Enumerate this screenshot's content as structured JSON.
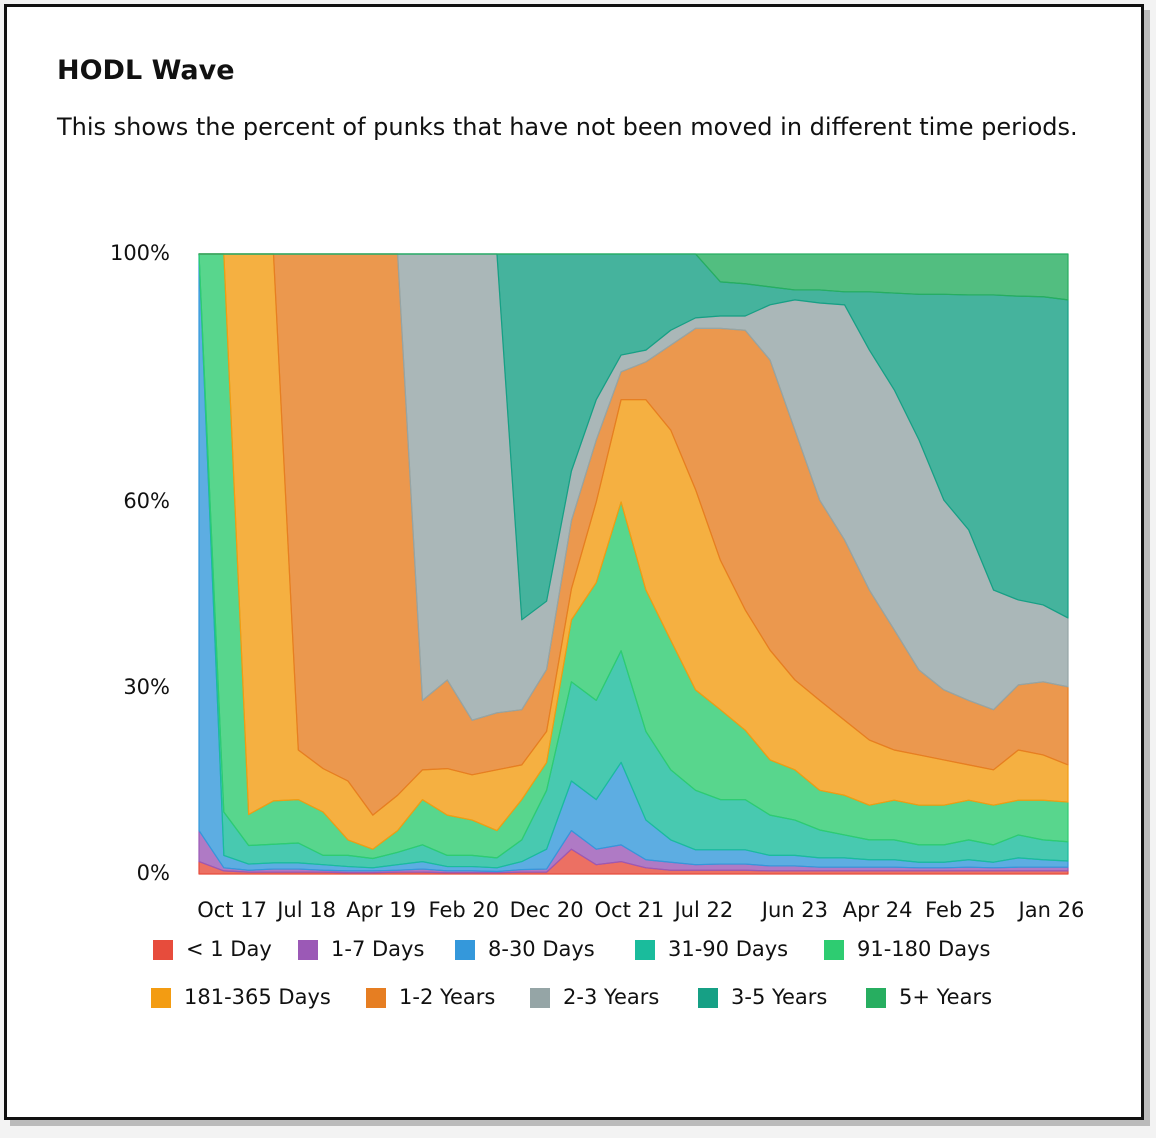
{
  "chart_data": {
    "type": "stacked_area",
    "title": "HODL Wave",
    "subtitle": "This shows the percent of punks that have not been moved in different time periods.",
    "x": [
      "2017-06",
      "2017-09",
      "2017-12",
      "2018-03",
      "2018-06",
      "2018-09",
      "2018-12",
      "2019-03",
      "2019-06",
      "2019-09",
      "2019-12",
      "2020-03",
      "2020-06",
      "2020-09",
      "2020-12",
      "2021-03",
      "2021-06",
      "2021-09",
      "2021-12",
      "2022-03",
      "2022-06",
      "2022-09",
      "2022-12",
      "2023-03",
      "2023-06",
      "2023-09",
      "2023-12",
      "2024-03",
      "2024-06",
      "2024-09",
      "2024-12",
      "2025-03",
      "2025-06",
      "2025-09",
      "2025-12",
      "2026-03"
    ],
    "xlim": [
      "2017-06",
      "2026-03"
    ],
    "xticks": [
      {
        "value": "2017-10",
        "label": "Oct 17"
      },
      {
        "value": "2018-07",
        "label": "Jul 18"
      },
      {
        "value": "2019-04",
        "label": "Apr 19"
      },
      {
        "value": "2020-02",
        "label": "Feb 20"
      },
      {
        "value": "2020-12",
        "label": "Dec 20"
      },
      {
        "value": "2021-10",
        "label": "Oct 21"
      },
      {
        "value": "2022-07",
        "label": "Jul 22"
      },
      {
        "value": "2023-06",
        "label": "Jun 23"
      },
      {
        "value": "2024-04",
        "label": "Apr 24"
      },
      {
        "value": "2025-02",
        "label": "Feb 25"
      },
      {
        "value": "2026-01",
        "label": "Jan 26"
      }
    ],
    "ylim": [
      0,
      100
    ],
    "yticks": [
      {
        "value": 0,
        "label": "0%"
      },
      {
        "value": 30,
        "label": "30%"
      },
      {
        "value": 60,
        "label": "60%"
      },
      {
        "value": 100,
        "label": "100%"
      }
    ],
    "grid": false,
    "series": [
      {
        "name": "< 1 Day",
        "color": "#e74c3c",
        "values": [
          2,
          0.5,
          0.3,
          0.3,
          0.3,
          0.3,
          0.2,
          0.2,
          0.3,
          0.3,
          0.2,
          0.2,
          0.2,
          0.3,
          0.3,
          4,
          1.5,
          2,
          1,
          0.6,
          0.6,
          0.6,
          0.6,
          0.5,
          0.5,
          0.5,
          0.5,
          0.5,
          0.5,
          0.5,
          0.5,
          0.5,
          0.5,
          0.5,
          0.5,
          0.5
        ]
      },
      {
        "name": "1-7 Days",
        "color": "#9b59b6",
        "values": [
          5,
          0.5,
          0.3,
          0.5,
          0.5,
          0.3,
          0.3,
          0.3,
          0.3,
          0.5,
          0.3,
          0.3,
          0.2,
          0.4,
          0.5,
          3,
          2.5,
          2.7,
          1.3,
          1.3,
          0.9,
          1,
          1,
          0.8,
          0.8,
          0.6,
          0.6,
          0.6,
          0.6,
          0.5,
          0.5,
          0.6,
          0.5,
          0.6,
          0.6,
          0.6
        ]
      },
      {
        "name": "8-30 Days",
        "color": "#3498db",
        "values": [
          93,
          2,
          1,
          1,
          1,
          0.9,
          0.7,
          0.5,
          0.9,
          1.2,
          0.7,
          0.7,
          0.6,
          1.3,
          3.2,
          8,
          8,
          13.3,
          6.4,
          3.6,
          2.4,
          2.3,
          2.3,
          1.7,
          1.7,
          1.5,
          1.5,
          1.2,
          1.2,
          0.9,
          0.9,
          1.2,
          0.9,
          1.5,
          1.2,
          1
        ]
      },
      {
        "name": "31-90 Days",
        "color": "#1abc9c",
        "values": [
          0,
          7,
          3,
          3,
          3.2,
          1.5,
          1.8,
          1.5,
          2,
          2.7,
          1.8,
          1.8,
          1.6,
          3.5,
          9.5,
          16,
          16,
          18,
          14.3,
          11.3,
          9.6,
          8.1,
          8.1,
          6.5,
          5.7,
          4.5,
          3.7,
          3.2,
          3.2,
          2.8,
          2.8,
          3.2,
          2.8,
          3.7,
          3.2,
          3.1
        ]
      },
      {
        "name": "91-180 Days",
        "color": "#2ecc71",
        "values": [
          0,
          90,
          5,
          7,
          7,
          7,
          2.5,
          1.5,
          3.5,
          7.3,
          6.5,
          5.7,
          4.4,
          6.5,
          4.5,
          10,
          19,
          24,
          22.8,
          20.9,
          16.2,
          14.5,
          11.2,
          8.9,
          8.1,
          6.4,
          6.4,
          5.6,
          6.4,
          6.4,
          6.4,
          6.4,
          6.4,
          5.6,
          6.4,
          6.4
        ]
      },
      {
        "name": "181-365 Days",
        "color": "#f39c12",
        "values": [
          0,
          0,
          90.4,
          88.2,
          8,
          7,
          9.5,
          5.5,
          5.7,
          4.8,
          7.5,
          7.3,
          9.8,
          5.6,
          5,
          5,
          13,
          16.5,
          30.7,
          33.9,
          32.3,
          24.1,
          19.4,
          17.7,
          14.5,
          14.5,
          12.1,
          10.5,
          8.1,
          8.1,
          7.3,
          5.7,
          5.7,
          8.1,
          7.3,
          6
        ]
      },
      {
        "name": "1-2 Years",
        "color": "#e67e22",
        "values": [
          0,
          0,
          0,
          0,
          80,
          83,
          85,
          90.5,
          87.3,
          11.2,
          14.3,
          8.8,
          9.2,
          8.9,
          10,
          11,
          10,
          4.5,
          6.1,
          13.7,
          26,
          37.4,
          45.1,
          46.8,
          40.3,
          32.3,
          29.1,
          24.2,
          19.4,
          13.7,
          11.3,
          10.4,
          9.7,
          10.5,
          11.8,
          12.6
        ]
      },
      {
        "name": "2-3 Years",
        "color": "#95a5a6",
        "values": [
          0,
          0,
          0,
          0,
          0,
          0,
          0,
          0,
          0,
          72,
          68.7,
          75.2,
          74,
          14.5,
          11,
          8,
          6.5,
          2.7,
          1.9,
          2.4,
          1.7,
          2,
          2.3,
          8.9,
          21,
          31.8,
          37.9,
          38.7,
          38.7,
          37.1,
          30.6,
          27.5,
          19.3,
          13.7,
          12.4,
          11.1
        ]
      },
      {
        "name": "3-5 Years",
        "color": "#16a085",
        "values": [
          0,
          0,
          0,
          0,
          0,
          0,
          0,
          0,
          0,
          0,
          0,
          0,
          0,
          59,
          56,
          35,
          23.5,
          16.3,
          15.5,
          12.3,
          10.3,
          5.5,
          5.2,
          2.9,
          1.6,
          2.1,
          2.1,
          9.4,
          15.6,
          23.5,
          33.2,
          37.9,
          47.6,
          49,
          49.7,
          51.3
        ]
      },
      {
        "name": "5+ Years",
        "color": "#27ae60",
        "values": [
          0,
          0,
          0,
          0,
          0,
          0,
          0,
          0,
          0,
          0,
          0,
          0,
          0,
          0,
          0,
          0,
          0,
          0,
          0,
          0,
          0,
          4.5,
          4.8,
          5.3,
          5.8,
          5.8,
          6.1,
          6.1,
          6.3,
          6.5,
          6.5,
          6.6,
          6.6,
          6.8,
          6.9,
          7.4
        ]
      }
    ]
  }
}
